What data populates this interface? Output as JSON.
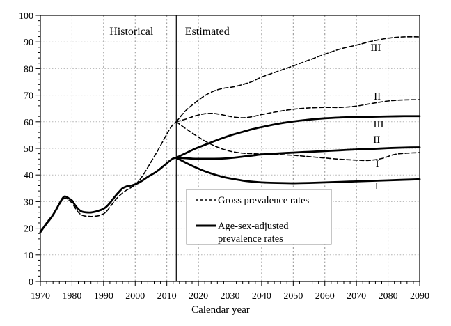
{
  "figure": {
    "background": "#ffffff",
    "line_color": "#000000",
    "grid_color_h": "#b3b3b3",
    "grid_color_v": "#8f8f8f",
    "legend_border_color": "#8c8c8c"
  },
  "chart_data": {
    "type": "line",
    "title": "",
    "xlabel": "Calendar year",
    "ylabel": "",
    "xlim": [
      1970,
      2090
    ],
    "ylim": [
      0,
      100
    ],
    "x_major_ticks": [
      1970,
      1980,
      1990,
      2000,
      2010,
      2020,
      2030,
      2040,
      2050,
      2060,
      2070,
      2080,
      2090
    ],
    "x_minor_step": 2,
    "y_major_ticks": [
      0,
      10,
      20,
      30,
      40,
      50,
      60,
      70,
      80,
      90,
      100
    ],
    "y_minor_step": 2,
    "grid": "dotted",
    "divider_year": 2013,
    "region_labels": [
      {
        "text": "Historical",
        "year": 1998.8,
        "value": 94
      },
      {
        "text": "Estimated",
        "year": 2022.8,
        "value": 94
      }
    ],
    "legend": {
      "entries": [
        {
          "style": "dashed",
          "lines": [
            "Gross prevalence rates"
          ]
        },
        {
          "style": "solid",
          "lines": [
            "Age-sex-adjusted",
            "prevalence rates"
          ]
        }
      ]
    },
    "series": [
      {
        "name": "gross-historical",
        "group": "Gross prevalence rates",
        "style": "dashed",
        "points": [
          [
            1970,
            18.8
          ],
          [
            1971,
            20.5
          ],
          [
            1972,
            22.2
          ],
          [
            1973,
            23.7
          ],
          [
            1974,
            25.2
          ],
          [
            1975,
            27.0
          ],
          [
            1976,
            28.9
          ],
          [
            1977,
            30.6
          ],
          [
            1977.6,
            31.2
          ],
          [
            1978.4,
            31.1
          ],
          [
            1979,
            30.5
          ],
          [
            1980,
            29.5
          ],
          [
            1981,
            27.6
          ],
          [
            1982,
            26.0
          ],
          [
            1983,
            25.0
          ],
          [
            1984,
            24.6
          ],
          [
            1985,
            24.5
          ],
          [
            1986,
            24.4
          ],
          [
            1987,
            24.5
          ],
          [
            1988,
            24.6
          ],
          [
            1989,
            24.9
          ],
          [
            1990,
            25.4
          ],
          [
            1991,
            26.4
          ],
          [
            1992,
            27.9
          ],
          [
            1993,
            29.5
          ],
          [
            1994,
            31.0
          ],
          [
            1995,
            32.2
          ],
          [
            1996,
            33.2
          ],
          [
            1997,
            34.1
          ],
          [
            1998,
            34.8
          ],
          [
            1999,
            35.5
          ],
          [
            2000,
            36.4
          ],
          [
            2001,
            37.6
          ],
          [
            2002,
            39.1
          ],
          [
            2003,
            40.9
          ],
          [
            2004,
            42.9
          ],
          [
            2005,
            44.9
          ],
          [
            2006,
            46.9
          ],
          [
            2007,
            48.9
          ],
          [
            2008,
            51.0
          ],
          [
            2009,
            53.2
          ],
          [
            2010,
            55.4
          ],
          [
            2011,
            57.4
          ],
          [
            2012,
            59.0
          ],
          [
            2013,
            60.0
          ]
        ]
      },
      {
        "name": "adjusted-historical",
        "group": "Age-sex-adjusted prevalence rates",
        "style": "solid",
        "points": [
          [
            1970,
            18.5
          ],
          [
            1971,
            20.2
          ],
          [
            1972,
            21.8
          ],
          [
            1973,
            23.3
          ],
          [
            1974,
            25.0
          ],
          [
            1975,
            27.0
          ],
          [
            1976,
            29.2
          ],
          [
            1977,
            31.2
          ],
          [
            1977.6,
            31.9
          ],
          [
            1978.4,
            31.7
          ],
          [
            1979,
            31.2
          ],
          [
            1980,
            30.4
          ],
          [
            1981,
            28.6
          ],
          [
            1982,
            27.2
          ],
          [
            1983,
            26.3
          ],
          [
            1984,
            26.0
          ],
          [
            1985,
            25.9
          ],
          [
            1986,
            25.9
          ],
          [
            1987,
            26.1
          ],
          [
            1988,
            26.4
          ],
          [
            1989,
            26.8
          ],
          [
            1990,
            27.3
          ],
          [
            1991,
            28.2
          ],
          [
            1992,
            29.5
          ],
          [
            1993,
            31.0
          ],
          [
            1994,
            32.5
          ],
          [
            1995,
            33.8
          ],
          [
            1996,
            35.0
          ],
          [
            1997,
            35.6
          ],
          [
            1998,
            35.9
          ],
          [
            1999,
            36.1
          ],
          [
            2000,
            36.5
          ],
          [
            2001,
            37.0
          ],
          [
            2002,
            37.7
          ],
          [
            2003,
            38.5
          ],
          [
            2004,
            39.3
          ],
          [
            2005,
            40.0
          ],
          [
            2006,
            40.7
          ],
          [
            2007,
            41.5
          ],
          [
            2008,
            42.4
          ],
          [
            2009,
            43.4
          ],
          [
            2010,
            44.4
          ],
          [
            2011,
            45.4
          ],
          [
            2012,
            46.2
          ],
          [
            2013,
            46.5
          ]
        ]
      },
      {
        "name": "gross-III",
        "group": "Gross prevalence rates",
        "style": "dashed",
        "label": {
          "text": "III",
          "year": 2076.1,
          "value": 88.0
        },
        "points": [
          [
            2013,
            60.0
          ],
          [
            2016,
            64.2
          ],
          [
            2019,
            67.2
          ],
          [
            2022,
            69.8
          ],
          [
            2025,
            71.6
          ],
          [
            2028,
            72.6
          ],
          [
            2031,
            73.1
          ],
          [
            2034,
            74.0
          ],
          [
            2037,
            75.1
          ],
          [
            2040,
            76.8
          ],
          [
            2045,
            78.9
          ],
          [
            2050,
            81.0
          ],
          [
            2055,
            83.2
          ],
          [
            2060,
            85.4
          ],
          [
            2065,
            87.4
          ],
          [
            2070,
            88.8
          ],
          [
            2075,
            90.3
          ],
          [
            2080,
            91.4
          ],
          [
            2085,
            91.9
          ],
          [
            2090,
            91.9
          ]
        ]
      },
      {
        "name": "gross-II",
        "group": "Gross prevalence rates",
        "style": "dashed",
        "label": {
          "text": "II",
          "year": 2076.6,
          "value": 69.6
        },
        "points": [
          [
            2013,
            60.0
          ],
          [
            2016,
            61.0
          ],
          [
            2019,
            62.2
          ],
          [
            2022,
            63.0
          ],
          [
            2025,
            63.1
          ],
          [
            2028,
            62.5
          ],
          [
            2031,
            61.8
          ],
          [
            2034,
            61.5
          ],
          [
            2037,
            61.9
          ],
          [
            2040,
            62.7
          ],
          [
            2045,
            63.8
          ],
          [
            2050,
            64.7
          ],
          [
            2055,
            65.2
          ],
          [
            2060,
            65.4
          ],
          [
            2065,
            65.4
          ],
          [
            2070,
            65.9
          ],
          [
            2075,
            66.9
          ],
          [
            2080,
            67.8
          ],
          [
            2085,
            68.2
          ],
          [
            2090,
            68.3
          ]
        ]
      },
      {
        "name": "gross-I",
        "group": "Gross prevalence rates",
        "style": "dashed",
        "label": {
          "text": "I",
          "year": 2076.6,
          "value": 44.2
        },
        "points": [
          [
            2013,
            60.0
          ],
          [
            2016,
            57.4
          ],
          [
            2019,
            55.0
          ],
          [
            2022,
            52.8
          ],
          [
            2025,
            51.0
          ],
          [
            2028,
            49.6
          ],
          [
            2031,
            48.7
          ],
          [
            2034,
            48.2
          ],
          [
            2037,
            48.0
          ],
          [
            2040,
            47.9
          ],
          [
            2045,
            47.7
          ],
          [
            2050,
            47.4
          ],
          [
            2055,
            46.9
          ],
          [
            2060,
            46.4
          ],
          [
            2065,
            45.9
          ],
          [
            2070,
            45.6
          ],
          [
            2074,
            45.5
          ],
          [
            2078,
            46.2
          ],
          [
            2082,
            47.7
          ],
          [
            2086,
            48.2
          ],
          [
            2090,
            48.4
          ]
        ]
      },
      {
        "name": "adjusted-III",
        "group": "Age-sex-adjusted prevalence rates",
        "style": "solid",
        "label": {
          "text": "III",
          "year": 2077.0,
          "value": 59.2
        },
        "points": [
          [
            2013,
            46.5
          ],
          [
            2016,
            48.2
          ],
          [
            2019,
            49.9
          ],
          [
            2022,
            51.3
          ],
          [
            2025,
            52.7
          ],
          [
            2028,
            54.0
          ],
          [
            2031,
            55.2
          ],
          [
            2034,
            56.2
          ],
          [
            2037,
            57.2
          ],
          [
            2040,
            58.0
          ],
          [
            2045,
            59.2
          ],
          [
            2050,
            60.1
          ],
          [
            2055,
            60.8
          ],
          [
            2060,
            61.3
          ],
          [
            2065,
            61.6
          ],
          [
            2070,
            61.8
          ],
          [
            2075,
            61.9
          ],
          [
            2080,
            62.0
          ],
          [
            2085,
            62.1
          ],
          [
            2090,
            62.1
          ]
        ]
      },
      {
        "name": "adjusted-II",
        "group": "Age-sex-adjusted prevalence rates",
        "style": "solid",
        "label": {
          "text": "II",
          "year": 2076.4,
          "value": 53.4
        },
        "points": [
          [
            2013,
            46.5
          ],
          [
            2016,
            46.3
          ],
          [
            2019,
            46.1
          ],
          [
            2022,
            46.1
          ],
          [
            2025,
            46.1
          ],
          [
            2028,
            46.2
          ],
          [
            2031,
            46.5
          ],
          [
            2034,
            46.9
          ],
          [
            2037,
            47.3
          ],
          [
            2040,
            47.7
          ],
          [
            2045,
            48.1
          ],
          [
            2050,
            48.4
          ],
          [
            2055,
            48.7
          ],
          [
            2060,
            49.0
          ],
          [
            2065,
            49.3
          ],
          [
            2070,
            49.6
          ],
          [
            2075,
            49.8
          ],
          [
            2080,
            50.1
          ],
          [
            2085,
            50.3
          ],
          [
            2090,
            50.4
          ]
        ]
      },
      {
        "name": "adjusted-I",
        "group": "Age-sex-adjusted prevalence rates",
        "style": "solid",
        "label": {
          "text": "I",
          "year": 2076.4,
          "value": 35.9
        },
        "points": [
          [
            2013,
            46.5
          ],
          [
            2016,
            44.6
          ],
          [
            2019,
            42.9
          ],
          [
            2022,
            41.4
          ],
          [
            2025,
            40.2
          ],
          [
            2028,
            39.2
          ],
          [
            2031,
            38.5
          ],
          [
            2034,
            37.9
          ],
          [
            2037,
            37.5
          ],
          [
            2040,
            37.2
          ],
          [
            2045,
            37.0
          ],
          [
            2050,
            36.9
          ],
          [
            2055,
            37.0
          ],
          [
            2060,
            37.2
          ],
          [
            2065,
            37.4
          ],
          [
            2070,
            37.6
          ],
          [
            2075,
            37.8
          ],
          [
            2080,
            38.0
          ],
          [
            2085,
            38.2
          ],
          [
            2090,
            38.4
          ]
        ]
      }
    ]
  }
}
